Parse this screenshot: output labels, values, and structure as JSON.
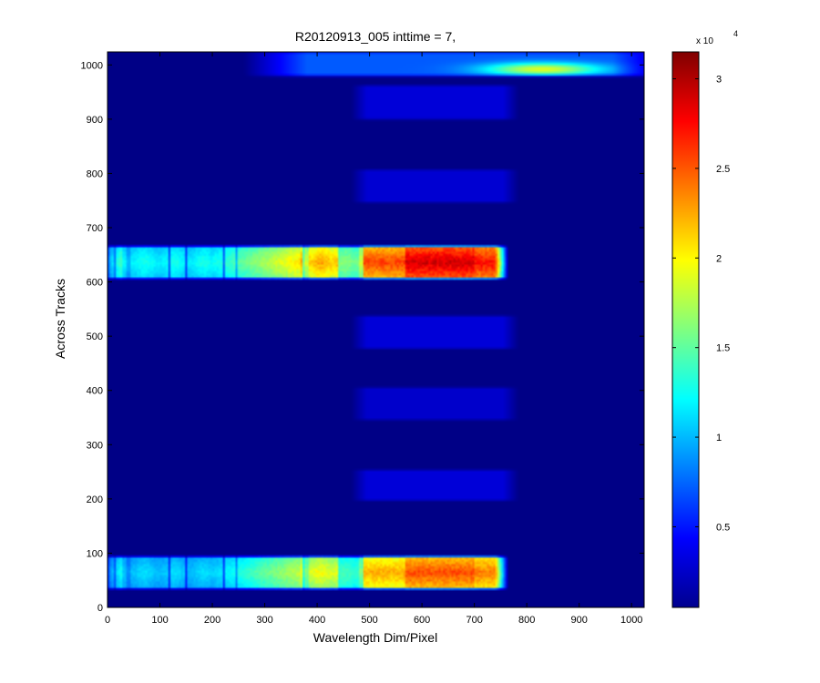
{
  "chart_data": {
    "type": "heatmap",
    "title": "R20120913_005 inttime = 7,",
    "xlabel": "Wavelength Dim/Pixel",
    "ylabel": "Across Tracks",
    "xlim": [
      0,
      1024
    ],
    "ylim": [
      0,
      1024
    ],
    "xticks": [
      "0",
      "100",
      "200",
      "300",
      "400",
      "500",
      "600",
      "700",
      "800",
      "900",
      "1000"
    ],
    "yticks": [
      "0",
      "100",
      "200",
      "300",
      "400",
      "500",
      "600",
      "700",
      "800",
      "900",
      "1000"
    ],
    "colormap": "jet",
    "colorbar": {
      "range": [
        500,
        31500
      ],
      "ticks": [
        "0.5",
        "1",
        "1.5",
        "2",
        "2.5",
        "3"
      ],
      "exponent_base": "x 10",
      "exponent_power": "4"
    },
    "background_value": 700,
    "features": [
      {
        "kind": "strong_band",
        "y": [
          35,
          93
        ],
        "x": [
          0,
          765
        ],
        "peak": 27000
      },
      {
        "kind": "strong_band",
        "y": [
          607,
          665
        ],
        "x": [
          0,
          765
        ],
        "peak": 31000
      },
      {
        "kind": "weak_band",
        "y": [
          197,
          253
        ],
        "x": [
          480,
          770
        ],
        "peak": 3200
      },
      {
        "kind": "weak_band",
        "y": [
          346,
          405
        ],
        "x": [
          480,
          770
        ],
        "peak": 2800
      },
      {
        "kind": "weak_band",
        "y": [
          477,
          537
        ],
        "x": [
          480,
          770
        ],
        "peak": 3200
      },
      {
        "kind": "weak_band",
        "y": [
          747,
          807
        ],
        "x": [
          480,
          770
        ],
        "peak": 3000
      },
      {
        "kind": "weak_band",
        "y": [
          900,
          962
        ],
        "x": [
          480,
          770
        ],
        "peak": 3200
      },
      {
        "kind": "edge_band",
        "y": [
          980,
          1024
        ],
        "x": [
          320,
          1024
        ],
        "peak": 19000
      }
    ]
  }
}
